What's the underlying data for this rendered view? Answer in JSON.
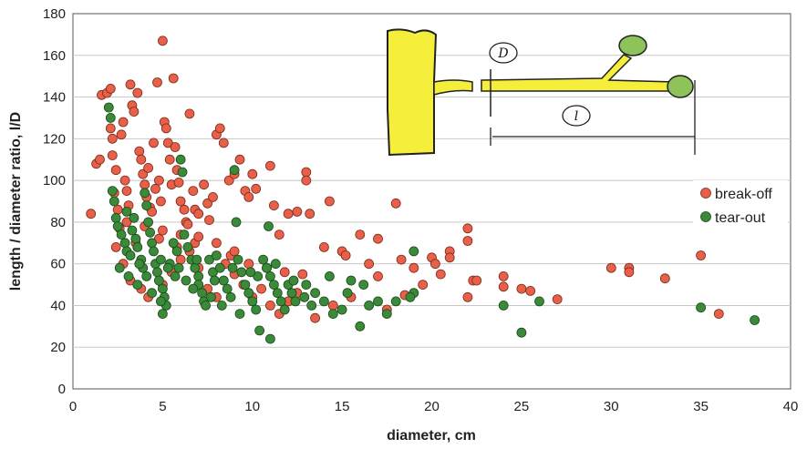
{
  "chart_data": {
    "type": "scatter",
    "title": "",
    "xlabel": "diameter, cm",
    "ylabel": "length / diameter ratio, l/D",
    "xlim": [
      0,
      40
    ],
    "ylim": [
      0,
      180
    ],
    "x_ticks": [
      0,
      5,
      10,
      15,
      20,
      25,
      30,
      35,
      40
    ],
    "y_ticks": [
      0,
      20,
      40,
      60,
      80,
      100,
      120,
      140,
      160,
      180
    ],
    "grid": "horizontal",
    "legend_position": "right",
    "series": [
      {
        "name": "break-off",
        "color": "#e8604a",
        "points": [
          [
            1,
            84
          ],
          [
            1.3,
            108
          ],
          [
            1.5,
            110
          ],
          [
            1.6,
            141
          ],
          [
            1.9,
            142
          ],
          [
            2.1,
            144
          ],
          [
            2.1,
            125
          ],
          [
            2.2,
            120
          ],
          [
            2.2,
            112
          ],
          [
            2.4,
            105
          ],
          [
            2.3,
            94
          ],
          [
            2.5,
            86
          ],
          [
            2.7,
            122
          ],
          [
            2.8,
            128
          ],
          [
            2.9,
            100
          ],
          [
            3,
            95
          ],
          [
            3.1,
            88
          ],
          [
            3.2,
            146
          ],
          [
            3.3,
            136
          ],
          [
            3.4,
            133
          ],
          [
            3.6,
            142
          ],
          [
            3.7,
            114
          ],
          [
            3.8,
            110
          ],
          [
            3.9,
            103
          ],
          [
            4,
            98
          ],
          [
            4.1,
            92
          ],
          [
            4.2,
            106
          ],
          [
            4.3,
            87
          ],
          [
            4.4,
            85
          ],
          [
            4.5,
            118
          ],
          [
            4.6,
            96
          ],
          [
            4.7,
            147
          ],
          [
            4.8,
            100
          ],
          [
            4.9,
            90
          ],
          [
            5,
            167
          ],
          [
            5.1,
            128
          ],
          [
            5.2,
            125
          ],
          [
            5.3,
            118
          ],
          [
            5.4,
            110
          ],
          [
            5.5,
            98
          ],
          [
            5.6,
            149
          ],
          [
            5.7,
            116
          ],
          [
            5.8,
            105
          ],
          [
            5.9,
            99
          ],
          [
            6,
            90
          ],
          [
            6.2,
            86
          ],
          [
            6.3,
            80
          ],
          [
            6.4,
            79
          ],
          [
            6.5,
            132
          ],
          [
            6.7,
            95
          ],
          [
            6.8,
            86
          ],
          [
            7,
            84
          ],
          [
            7.3,
            98
          ],
          [
            7.5,
            89
          ],
          [
            7.6,
            81
          ],
          [
            7.8,
            92
          ],
          [
            8,
            122
          ],
          [
            8.2,
            125
          ],
          [
            8.4,
            118
          ],
          [
            8.7,
            100
          ],
          [
            9,
            103
          ],
          [
            9.3,
            110
          ],
          [
            9.6,
            95
          ],
          [
            9.8,
            92
          ],
          [
            10,
            103
          ],
          [
            10.2,
            96
          ],
          [
            11,
            107
          ],
          [
            11.2,
            88
          ],
          [
            11.5,
            74
          ],
          [
            12,
            84
          ],
          [
            12.5,
            85
          ],
          [
            13,
            104
          ],
          [
            13,
            100
          ],
          [
            13.2,
            84
          ],
          [
            14,
            68
          ],
          [
            14.3,
            90
          ],
          [
            15,
            66
          ],
          [
            15.2,
            64
          ],
          [
            16,
            74
          ],
          [
            16.5,
            60
          ],
          [
            17,
            72
          ],
          [
            17,
            54
          ],
          [
            18,
            89
          ],
          [
            18.3,
            62
          ],
          [
            19,
            58
          ],
          [
            20,
            63
          ],
          [
            20.2,
            60
          ],
          [
            20.5,
            55
          ],
          [
            21,
            66
          ],
          [
            21,
            63
          ],
          [
            22,
            77
          ],
          [
            22,
            71
          ],
          [
            22.3,
            52
          ],
          [
            22.5,
            52
          ],
          [
            24,
            54
          ],
          [
            24,
            49
          ],
          [
            25,
            48
          ],
          [
            25.5,
            47
          ],
          [
            27,
            43
          ],
          [
            30,
            58
          ],
          [
            31,
            58
          ],
          [
            31,
            56
          ],
          [
            33,
            53
          ],
          [
            35,
            64
          ],
          [
            36,
            36
          ],
          [
            2.4,
            68
          ],
          [
            2.8,
            60
          ],
          [
            3.2,
            52
          ],
          [
            3.8,
            48
          ],
          [
            4.2,
            44
          ],
          [
            5,
            50
          ],
          [
            5.5,
            56
          ],
          [
            6,
            62
          ],
          [
            6.5,
            66
          ],
          [
            7,
            58
          ],
          [
            7.5,
            48
          ],
          [
            8,
            44
          ],
          [
            8.5,
            60
          ],
          [
            9,
            55
          ],
          [
            9.5,
            50
          ],
          [
            10,
            44
          ],
          [
            10.5,
            48
          ],
          [
            11,
            40
          ],
          [
            11.5,
            36
          ],
          [
            12,
            42
          ],
          [
            12.5,
            46
          ],
          [
            13.5,
            34
          ],
          [
            14.5,
            40
          ],
          [
            15.5,
            44
          ],
          [
            17.5,
            38
          ],
          [
            18.5,
            45
          ],
          [
            19.5,
            50
          ],
          [
            22,
            44
          ],
          [
            2.6,
            77
          ],
          [
            3.5,
            70
          ],
          [
            4.8,
            72
          ],
          [
            5.8,
            68
          ],
          [
            6.8,
            70
          ],
          [
            8.8,
            64
          ],
          [
            9.8,
            60
          ],
          [
            10.8,
            58
          ],
          [
            11.8,
            56
          ],
          [
            12.8,
            55
          ],
          [
            3,
            80
          ],
          [
            4,
            78
          ],
          [
            5,
            76
          ],
          [
            6,
            74
          ],
          [
            7,
            73
          ],
          [
            8,
            70
          ],
          [
            9,
            66
          ]
        ]
      },
      {
        "name": "tear-out",
        "color": "#3a8a3a",
        "points": [
          [
            2,
            135
          ],
          [
            2.1,
            130
          ],
          [
            2.2,
            95
          ],
          [
            2.3,
            90
          ],
          [
            2.4,
            82
          ],
          [
            2.5,
            78
          ],
          [
            2.7,
            74
          ],
          [
            2.9,
            70
          ],
          [
            3,
            66
          ],
          [
            3.2,
            64
          ],
          [
            3.3,
            76
          ],
          [
            3.5,
            72
          ],
          [
            3.6,
            68
          ],
          [
            3.8,
            62
          ],
          [
            3.9,
            58
          ],
          [
            4,
            94
          ],
          [
            4.1,
            88
          ],
          [
            4.2,
            80
          ],
          [
            4.3,
            75
          ],
          [
            4.4,
            70
          ],
          [
            4.5,
            66
          ],
          [
            4.6,
            60
          ],
          [
            4.7,
            56
          ],
          [
            4.8,
            52
          ],
          [
            5,
            48
          ],
          [
            5.1,
            44
          ],
          [
            5.2,
            40
          ],
          [
            5,
            36
          ],
          [
            5.4,
            60
          ],
          [
            5.6,
            70
          ],
          [
            5.8,
            66
          ],
          [
            6,
            110
          ],
          [
            6.1,
            104
          ],
          [
            6.2,
            74
          ],
          [
            6.4,
            68
          ],
          [
            6.6,
            62
          ],
          [
            6.8,
            58
          ],
          [
            7,
            54
          ],
          [
            7,
            50
          ],
          [
            7.2,
            46
          ],
          [
            7.3,
            42
          ],
          [
            7.4,
            40
          ],
          [
            7.6,
            62
          ],
          [
            7.8,
            56
          ],
          [
            8,
            64
          ],
          [
            8.2,
            58
          ],
          [
            8.4,
            52
          ],
          [
            8.6,
            48
          ],
          [
            8.8,
            44
          ],
          [
            9,
            105
          ],
          [
            9.1,
            80
          ],
          [
            9.2,
            62
          ],
          [
            9.4,
            56
          ],
          [
            9.6,
            50
          ],
          [
            9.8,
            46
          ],
          [
            10,
            42
          ],
          [
            10.2,
            38
          ],
          [
            10.4,
            28
          ],
          [
            10.6,
            62
          ],
          [
            10.8,
            58
          ],
          [
            11,
            54
          ],
          [
            11,
            24
          ],
          [
            11.2,
            50
          ],
          [
            11.4,
            46
          ],
          [
            11.6,
            42
          ],
          [
            11.8,
            38
          ],
          [
            12,
            50
          ],
          [
            12.2,
            46
          ],
          [
            12.4,
            42
          ],
          [
            13,
            50
          ],
          [
            13.5,
            46
          ],
          [
            14,
            42
          ],
          [
            14.5,
            36
          ],
          [
            15,
            38
          ],
          [
            15.5,
            52
          ],
          [
            16,
            30
          ],
          [
            16.5,
            40
          ],
          [
            17,
            42
          ],
          [
            17.5,
            36
          ],
          [
            18,
            42
          ],
          [
            19,
            66
          ],
          [
            19,
            46
          ],
          [
            24,
            40
          ],
          [
            25,
            27
          ],
          [
            26,
            42
          ],
          [
            35,
            39
          ],
          [
            38,
            33
          ],
          [
            3,
            85
          ],
          [
            3.4,
            82
          ],
          [
            3.7,
            60
          ],
          [
            4.1,
            54
          ],
          [
            4.9,
            62
          ],
          [
            5.3,
            58
          ],
          [
            5.7,
            54
          ],
          [
            6.3,
            52
          ],
          [
            6.7,
            48
          ],
          [
            7.7,
            44
          ],
          [
            8.3,
            40
          ],
          [
            9.3,
            36
          ],
          [
            10.3,
            54
          ],
          [
            11.3,
            60
          ],
          [
            12.3,
            52
          ],
          [
            13.3,
            40
          ],
          [
            14.3,
            54
          ],
          [
            15.3,
            46
          ],
          [
            2.6,
            58
          ],
          [
            3.1,
            54
          ],
          [
            3.6,
            50
          ],
          [
            4.4,
            46
          ],
          [
            4.9,
            42
          ],
          [
            5.9,
            58
          ],
          [
            6.9,
            62
          ],
          [
            7.9,
            52
          ],
          [
            8.9,
            58
          ],
          [
            9.9,
            56
          ],
          [
            10.9,
            78
          ],
          [
            12.9,
            44
          ],
          [
            16.2,
            50
          ],
          [
            18.8,
            44
          ]
        ]
      }
    ]
  },
  "diagram": {
    "labels": [
      "D",
      "l"
    ]
  }
}
